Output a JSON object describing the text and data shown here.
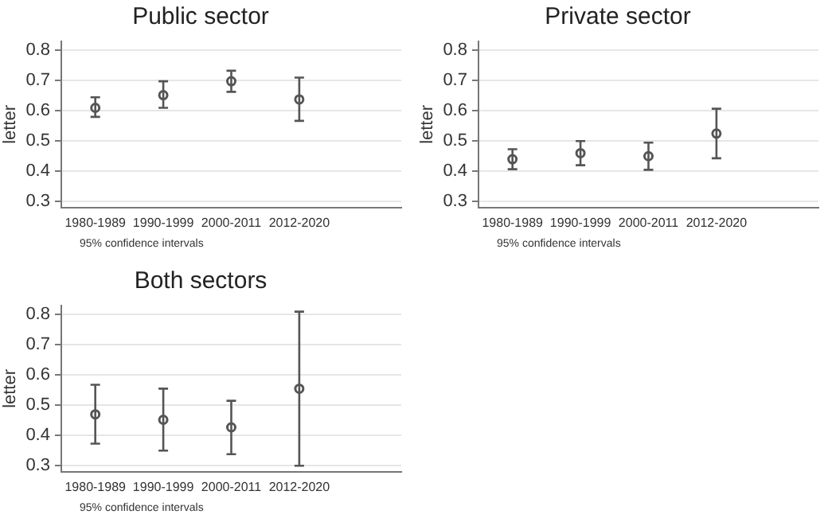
{
  "chart_data": [
    {
      "type": "scatter",
      "title": "Public sector",
      "ylabel": "letter",
      "categories": [
        "1980-1989",
        "1990-1999",
        "2000-2011",
        "2012-2020"
      ],
      "series": [
        {
          "color": "#555555",
          "values": [
            0.61,
            0.652,
            0.698,
            0.638
          ],
          "errors": [
            [
              0.58,
              0.645
            ],
            [
              0.61,
              0.698
            ],
            [
              0.663,
              0.733
            ],
            [
              0.567,
              0.71
            ]
          ]
        }
      ],
      "ylim": [
        0.28,
        0.83
      ],
      "yticks": [
        0.3,
        0.4,
        0.5,
        0.6,
        0.7,
        0.8
      ],
      "grid": "y",
      "marker": "circle",
      "legend": false,
      "annotations": [
        "95% confidence intervals"
      ]
    },
    {
      "type": "scatter",
      "title": "Private sector",
      "ylabel": "letter",
      "categories": [
        "1980-1989",
        "1990-1999",
        "2000-2011",
        "2012-2020"
      ],
      "series": [
        {
          "color": "#555555",
          "values": [
            0.44,
            0.46,
            0.45,
            0.525
          ],
          "errors": [
            [
              0.407,
              0.473
            ],
            [
              0.42,
              0.5
            ],
            [
              0.405,
              0.495
            ],
            [
              0.443,
              0.607
            ]
          ]
        }
      ],
      "ylim": [
        0.28,
        0.83
      ],
      "yticks": [
        0.3,
        0.4,
        0.5,
        0.6,
        0.7,
        0.8
      ],
      "grid": "y",
      "marker": "circle",
      "legend": false,
      "annotations": [
        "95% confidence intervals"
      ]
    },
    {
      "type": "scatter",
      "title": "Both sectors",
      "ylabel": "letter",
      "categories": [
        "1980-1989",
        "1990-1999",
        "2000-2011",
        "2012-2020"
      ],
      "series": [
        {
          "color": "#555555",
          "values": [
            0.47,
            0.452,
            0.427,
            0.555
          ],
          "errors": [
            [
              0.373,
              0.568
            ],
            [
              0.35,
              0.555
            ],
            [
              0.338,
              0.515
            ],
            [
              0.3,
              0.81
            ]
          ]
        }
      ],
      "ylim": [
        0.28,
        0.83
      ],
      "yticks": [
        0.3,
        0.4,
        0.5,
        0.6,
        0.7,
        0.8
      ],
      "grid": "y",
      "marker": "circle",
      "legend": false,
      "annotations": [
        "95% confidence intervals"
      ]
    }
  ]
}
